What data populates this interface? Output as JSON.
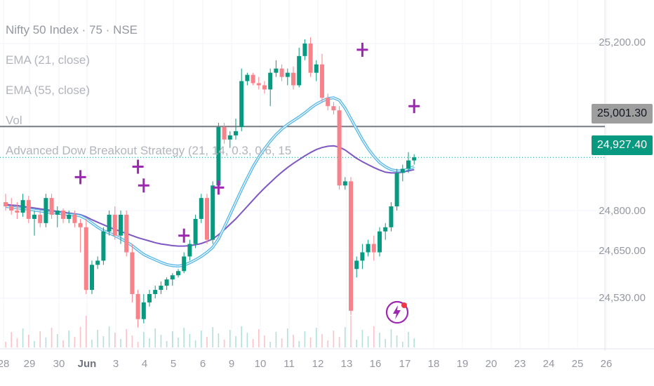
{
  "legend": {
    "title": "Nifty 50 Index · 75 · NSE",
    "ema21": "EMA (21, close)",
    "ema55": "EMA (55, close)",
    "vol": "Vol",
    "strategy": "Advanced Dow Breakout Strategy (21, 14, 0.3, 0.6, 15"
  },
  "price_labels": {
    "resistance": "25,001.30",
    "last": "24,927.40"
  },
  "colors": {
    "up": "#089981",
    "down": "#f23645",
    "down_soft": "#f7828a",
    "ema_fast": "#5ab9ea",
    "ema_slow": "#7e57c2",
    "signal": "#9c27b0",
    "last_price": "#089981",
    "resistance": "#787b86"
  },
  "chart_data": {
    "type": "candlestick",
    "symbol": "Nifty 50 Index",
    "interval": "75",
    "y_ticks": [
      "25,200.00",
      "24,800.00",
      "24,650.00",
      "24,530.00"
    ],
    "x_ticks": [
      "28",
      "29",
      "30",
      "Jun",
      "3",
      "4",
      "5",
      "6",
      "9",
      "10",
      "11",
      "12",
      "13",
      "16",
      "17",
      "18",
      "19",
      "20",
      "23",
      "24",
      "25",
      "26"
    ],
    "resistance_level": 25001.3,
    "last_price": 24927.4,
    "candles": [
      [
        24820,
        24840,
        24800,
        24810
      ],
      [
        24810,
        24830,
        24790,
        24800
      ],
      [
        24800,
        24820,
        24780,
        24795
      ],
      [
        24795,
        24840,
        24785,
        24825
      ],
      [
        24825,
        24835,
        24770,
        24780
      ],
      [
        24780,
        24800,
        24740,
        24790
      ],
      [
        24790,
        24800,
        24760,
        24770
      ],
      [
        24770,
        24840,
        24760,
        24830
      ],
      [
        24830,
        24840,
        24780,
        24790
      ],
      [
        24790,
        24810,
        24760,
        24800
      ],
      [
        24800,
        24805,
        24770,
        24780
      ],
      [
        24780,
        24800,
        24770,
        24790
      ],
      [
        24790,
        24800,
        24760,
        24770
      ],
      [
        24770,
        24780,
        24700,
        24760
      ],
      [
        24760,
        24780,
        24600,
        24610
      ],
      [
        24610,
        24680,
        24600,
        24670
      ],
      [
        24670,
        24690,
        24660,
        24680
      ],
      [
        24680,
        24760,
        24670,
        24750
      ],
      [
        24750,
        24800,
        24740,
        24790
      ],
      [
        24790,
        24810,
        24730,
        24740
      ],
      [
        24740,
        24800,
        24720,
        24790
      ],
      [
        24790,
        24800,
        24690,
        24700
      ],
      [
        24700,
        24720,
        24580,
        24600
      ],
      [
        24600,
        24610,
        24520,
        24540
      ],
      [
        24540,
        24600,
        24530,
        24580
      ],
      [
        24580,
        24610,
        24570,
        24600
      ],
      [
        24600,
        24620,
        24590,
        24610
      ],
      [
        24610,
        24630,
        24600,
        24620
      ],
      [
        24620,
        24640,
        24610,
        24635
      ],
      [
        24635,
        24650,
        24620,
        24645
      ],
      [
        24645,
        24660,
        24640,
        24655
      ],
      [
        24655,
        24700,
        24650,
        24690
      ],
      [
        24690,
        24730,
        24680,
        24720
      ],
      [
        24720,
        24790,
        24710,
        24780
      ],
      [
        24780,
        24840,
        24770,
        24830
      ],
      [
        24830,
        24840,
        24720,
        24730
      ],
      [
        24730,
        24870,
        24720,
        24860
      ],
      [
        24860,
        25010,
        24850,
        25000
      ],
      [
        25000,
        25010,
        24960,
        24970
      ],
      [
        24970,
        24990,
        24950,
        24980
      ],
      [
        24980,
        25020,
        24970,
        24990
      ],
      [
        25000,
        25140,
        24990,
        25110
      ],
      [
        25110,
        25130,
        25100,
        25125
      ],
      [
        25125,
        25130,
        25100,
        25105
      ],
      [
        25105,
        25120,
        25090,
        25100
      ],
      [
        25100,
        25110,
        25080,
        25090
      ],
      [
        25090,
        25140,
        25050,
        25130
      ],
      [
        25130,
        25160,
        25120,
        25140
      ],
      [
        25140,
        25150,
        25110,
        25120
      ],
      [
        25120,
        25140,
        25100,
        25130
      ],
      [
        25130,
        25145,
        25090,
        25100
      ],
      [
        25100,
        25190,
        25095,
        25170
      ],
      [
        25170,
        25210,
        25160,
        25200
      ],
      [
        25200,
        25215,
        25120,
        25130
      ],
      [
        25130,
        25160,
        25110,
        25150
      ],
      [
        25150,
        25175,
        25060,
        25070
      ],
      [
        25070,
        25080,
        25040,
        25050
      ],
      [
        25050,
        25060,
        25030,
        25040
      ],
      [
        25040,
        25050,
        24850,
        24860
      ],
      [
        24860,
        24880,
        24850,
        24870
      ],
      [
        24870,
        24880,
        24550,
        24560
      ],
      [
        24660,
        24690,
        24640,
        24680
      ],
      [
        24680,
        24720,
        24660,
        24700
      ],
      [
        24700,
        24730,
        24690,
        24720
      ],
      [
        24720,
        24740,
        24680,
        24700
      ],
      [
        24700,
        24760,
        24690,
        24750
      ],
      [
        24750,
        24770,
        24730,
        24760
      ],
      [
        24760,
        24820,
        24750,
        24810
      ],
      [
        24810,
        24900,
        24800,
        24890
      ],
      [
        24890,
        24910,
        24870,
        24900
      ],
      [
        24900,
        24940,
        24890,
        24920
      ],
      [
        24920,
        24935,
        24910,
        24927.4
      ]
    ],
    "ema21": [
      24810,
      24808,
      24806,
      24805,
      24803,
      24801,
      24799,
      24797,
      24795,
      24794,
      24792,
      24790,
      24789,
      24787,
      24780,
      24770,
      24760,
      24752,
      24746,
      24740,
      24733,
      24725,
      24716,
      24705,
      24695,
      24688,
      24682,
      24676,
      24671,
      24668,
      24667,
      24669,
      24675,
      24682,
      24690,
      24700,
      24712,
      24732,
      24760,
      24790,
      24820,
      24850,
      24878,
      24905,
      24928,
      24948,
      24966,
      24982,
      24995,
      25006,
      25015,
      25024,
      25034,
      25045,
      25055,
      25062,
      25068,
      25070,
      25064,
      25045,
      25020,
      24995,
      24970,
      24948,
      24930,
      24915,
      24905,
      24898,
      24895,
      24895,
      24900,
      24905
    ],
    "ema55": [
      24815,
      24813,
      24812,
      24810,
      24808,
      24806,
      24804,
      24802,
      24800,
      24798,
      24796,
      24794,
      24792,
      24790,
      24785,
      24778,
      24772,
      24766,
      24760,
      24755,
      24750,
      24745,
      24740,
      24735,
      24731,
      24727,
      24723,
      24720,
      24718,
      24716,
      24715,
      24715,
      24716,
      24718,
      24721,
      24726,
      24732,
      24742,
      24754,
      24767,
      24780,
      24795,
      24810,
      24825,
      24840,
      24854,
      24867,
      24880,
      24892,
      24903,
      24913,
      24922,
      24931,
      24939,
      24946,
      24951,
      24954,
      24955,
      24952,
      24945,
      24935,
      24925,
      24917,
      24910,
      24903,
      24897,
      24892,
      24890,
      24890,
      24892,
      24895,
      24898
    ],
    "signals": [
      {
        "x_index": 13,
        "y": 24880
      },
      {
        "x_index": 23,
        "y": 24905
      },
      {
        "x_index": 24,
        "y": 24860
      },
      {
        "x_index": 31,
        "y": 24740
      },
      {
        "x_index": 37,
        "y": 24855
      },
      {
        "x_index": 62,
        "y": 25185
      },
      {
        "x_index": 71,
        "y": 25050
      }
    ]
  }
}
